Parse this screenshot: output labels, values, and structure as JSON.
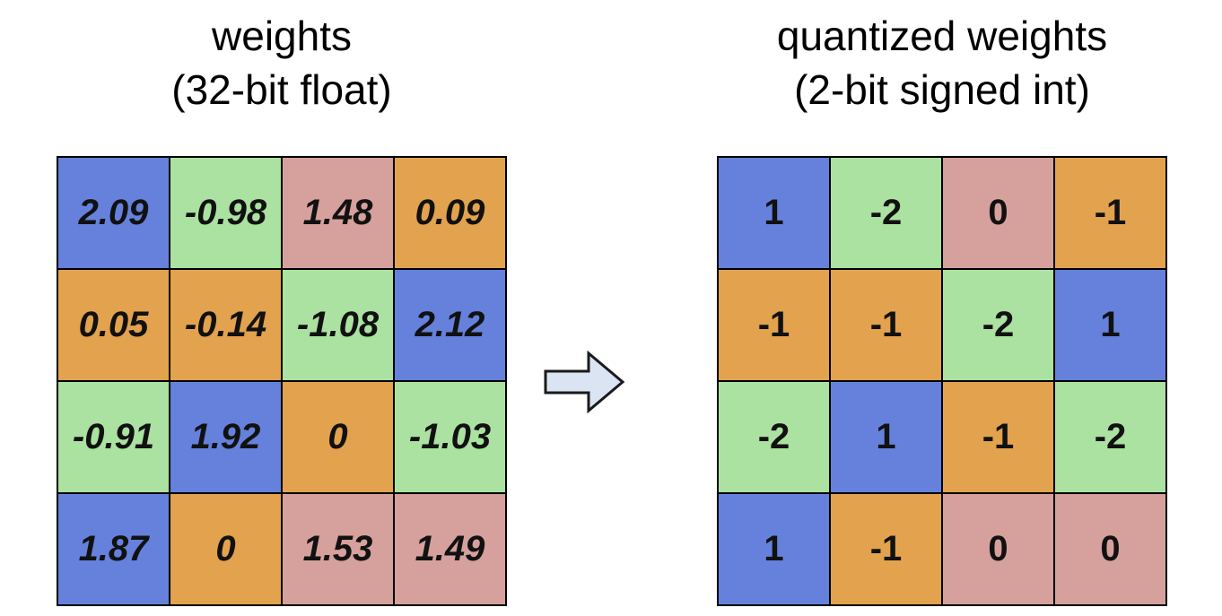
{
  "left": {
    "title_line1": "weights",
    "title_line2": "(32-bit float)",
    "cells": [
      {
        "value": "2.09",
        "color": "#6581dc"
      },
      {
        "value": "-0.98",
        "color": "#abe1a1"
      },
      {
        "value": "1.48",
        "color": "#d6a09d"
      },
      {
        "value": "0.09",
        "color": "#e2a24e"
      },
      {
        "value": "0.05",
        "color": "#e2a24e"
      },
      {
        "value": "-0.14",
        "color": "#e2a24e"
      },
      {
        "value": "-1.08",
        "color": "#abe1a1"
      },
      {
        "value": "2.12",
        "color": "#6581dc"
      },
      {
        "value": "-0.91",
        "color": "#abe1a1"
      },
      {
        "value": "1.92",
        "color": "#6581dc"
      },
      {
        "value": "0",
        "color": "#e2a24e"
      },
      {
        "value": "-1.03",
        "color": "#abe1a1"
      },
      {
        "value": "1.87",
        "color": "#6581dc"
      },
      {
        "value": "0",
        "color": "#e2a24e"
      },
      {
        "value": "1.53",
        "color": "#d6a09d"
      },
      {
        "value": "1.49",
        "color": "#d6a09d"
      }
    ]
  },
  "right": {
    "title_line1": "quantized weights",
    "title_line2": "(2-bit signed int)",
    "cells": [
      {
        "value": "1",
        "color": "#6581dc"
      },
      {
        "value": "-2",
        "color": "#abe1a1"
      },
      {
        "value": "0",
        "color": "#d6a09d"
      },
      {
        "value": "-1",
        "color": "#e2a24e"
      },
      {
        "value": "-1",
        "color": "#e2a24e"
      },
      {
        "value": "-1",
        "color": "#e2a24e"
      },
      {
        "value": "-2",
        "color": "#abe1a1"
      },
      {
        "value": "1",
        "color": "#6581dc"
      },
      {
        "value": "-2",
        "color": "#abe1a1"
      },
      {
        "value": "1",
        "color": "#6581dc"
      },
      {
        "value": "-1",
        "color": "#e2a24e"
      },
      {
        "value": "-2",
        "color": "#abe1a1"
      },
      {
        "value": "1",
        "color": "#6581dc"
      },
      {
        "value": "-1",
        "color": "#e2a24e"
      },
      {
        "value": "0",
        "color": "#d6a09d"
      },
      {
        "value": "0",
        "color": "#d6a09d"
      }
    ]
  },
  "arrow": {
    "icon": "right-arrow-icon",
    "fill": "#dae4f3",
    "stroke": "#1a1a1a"
  }
}
